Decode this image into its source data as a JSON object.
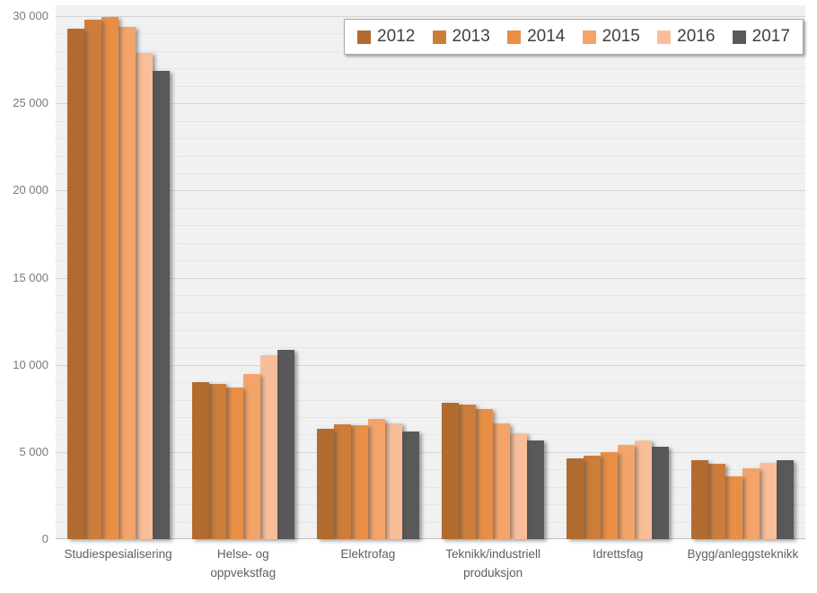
{
  "chart_data": {
    "type": "bar",
    "title": "",
    "xlabel": "",
    "ylabel": "",
    "categories": [
      "Studiespesialisering",
      "Helse- og oppvekstfag",
      "Elektrofag",
      "Teknikk/industriell produksjon",
      "Idrettsfag",
      "Bygg/anleggsteknikk"
    ],
    "category_labels_display": [
      "Studiespesialisering",
      "Helse- og\noppvekstfag",
      "Elektrofag",
      "Teknikk/industriell\nproduksjon",
      "Idrettsfag",
      "Bygg/anleggsteknikk"
    ],
    "series": [
      {
        "name": "2012",
        "color": "#B26B2F",
        "values": [
          29300,
          9000,
          6350,
          7800,
          4650,
          4550
        ]
      },
      {
        "name": "2013",
        "color": "#CD7D3A",
        "values": [
          29800,
          8900,
          6600,
          7700,
          4800,
          4350
        ]
      },
      {
        "name": "2014",
        "color": "#E98F45",
        "values": [
          29950,
          8700,
          6550,
          7450,
          5000,
          3600
        ]
      },
      {
        "name": "2015",
        "color": "#F5A469",
        "values": [
          29400,
          9450,
          6900,
          6650,
          5400,
          4050
        ]
      },
      {
        "name": "2016",
        "color": "#F8BE99",
        "values": [
          27900,
          10550,
          6650,
          6050,
          5650,
          4400
        ]
      },
      {
        "name": "2017",
        "color": "#595959",
        "values": [
          26850,
          10850,
          6200,
          5650,
          5300,
          4550
        ]
      }
    ],
    "ylim": [
      0,
      30000
    ],
    "y_major_unit": 5000,
    "y_minor_unit": 1000,
    "y_tick_labels": [
      "0",
      "5 000",
      "10 000",
      "15 000",
      "20 000",
      "25 000",
      "30 000"
    ],
    "grid": "horizontal major+minor",
    "legend_position": "top-right",
    "legend_entries": [
      "2012",
      "2013",
      "2014",
      "2015",
      "2016",
      "2017"
    ]
  },
  "colors": {
    "plot_background": "#f1f1f1",
    "page_background": "#ffffff",
    "minor_gridline": "#e6e6e6",
    "major_gridline": "#d4d4d4",
    "axis_text": "#7a7a7a",
    "category_text": "#5f5f5f",
    "legend_text": "#404040",
    "legend_border": "#a9a9a9"
  }
}
